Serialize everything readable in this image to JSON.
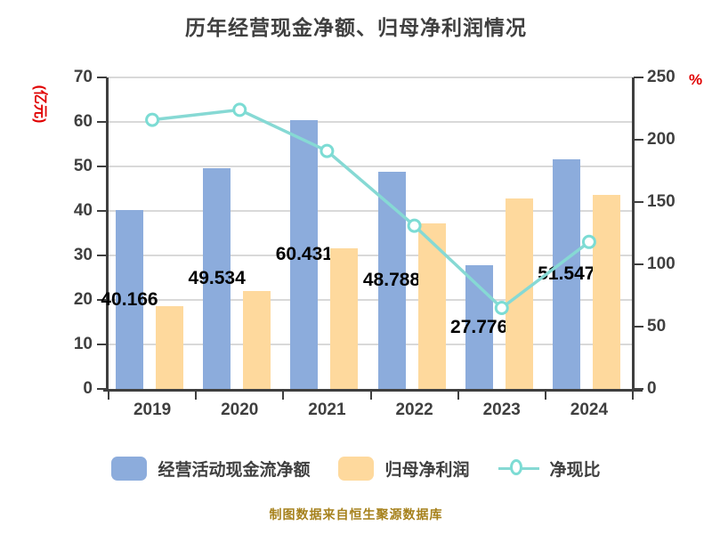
{
  "title": "历年经营现金净额、归母净利润情况",
  "footer": "制图数据来自恒生聚源数据库",
  "legend": [
    {
      "label": "经营活动现金流净额"
    },
    {
      "label": "归母净利润"
    },
    {
      "label": "净现比"
    }
  ],
  "colors": {
    "bar_cash": "#8cacdc",
    "bar_profit": "#fed99d",
    "line_ratio": "#86d9d4",
    "marker_ring": "#7cdcd4",
    "marker_fill": "#ffffff",
    "gridline": "#d9d9d9",
    "axis": "#3f3f3f",
    "axis_name_red": "#e00000",
    "text_dark": "#3f3f3f",
    "data_label": "#000000",
    "footer_gold": "#a6811c"
  },
  "chart_data": {
    "type": "bar+line combo",
    "title": "历年经营现金净额、归母净利润情况",
    "categories": [
      "2019",
      "2020",
      "2021",
      "2022",
      "2023",
      "2024"
    ],
    "series": [
      {
        "name": "经营活动现金流净额",
        "type": "bar",
        "axis": "left",
        "values": [
          40.166,
          49.534,
          60.431,
          48.788,
          27.776,
          51.547
        ],
        "data_labels": [
          "40.166",
          "49.534",
          "60.431",
          "48.788",
          "27.776",
          "51.547"
        ],
        "color": "#8cacdc"
      },
      {
        "name": "归母净利润",
        "type": "bar",
        "axis": "left",
        "values": [
          18.6,
          22.1,
          31.7,
          37.3,
          42.8,
          43.6
        ],
        "color": "#fed99d"
      },
      {
        "name": "净现比",
        "type": "line",
        "axis": "right",
        "unit": "%",
        "values": [
          216,
          224,
          191,
          131,
          65,
          118
        ],
        "color": "#86d9d4"
      }
    ],
    "axes": {
      "left": {
        "name": "(亿元)",
        "min": 0,
        "max": 70,
        "step": 10,
        "ticks": [
          "0",
          "10",
          "20",
          "30",
          "40",
          "50",
          "60",
          "70"
        ]
      },
      "right": {
        "name": "%",
        "min": 0,
        "max": 250,
        "step": 50,
        "ticks": [
          "0",
          "50",
          "100",
          "150",
          "200",
          "250"
        ]
      }
    },
    "grid": true,
    "legend_position": "bottom"
  }
}
